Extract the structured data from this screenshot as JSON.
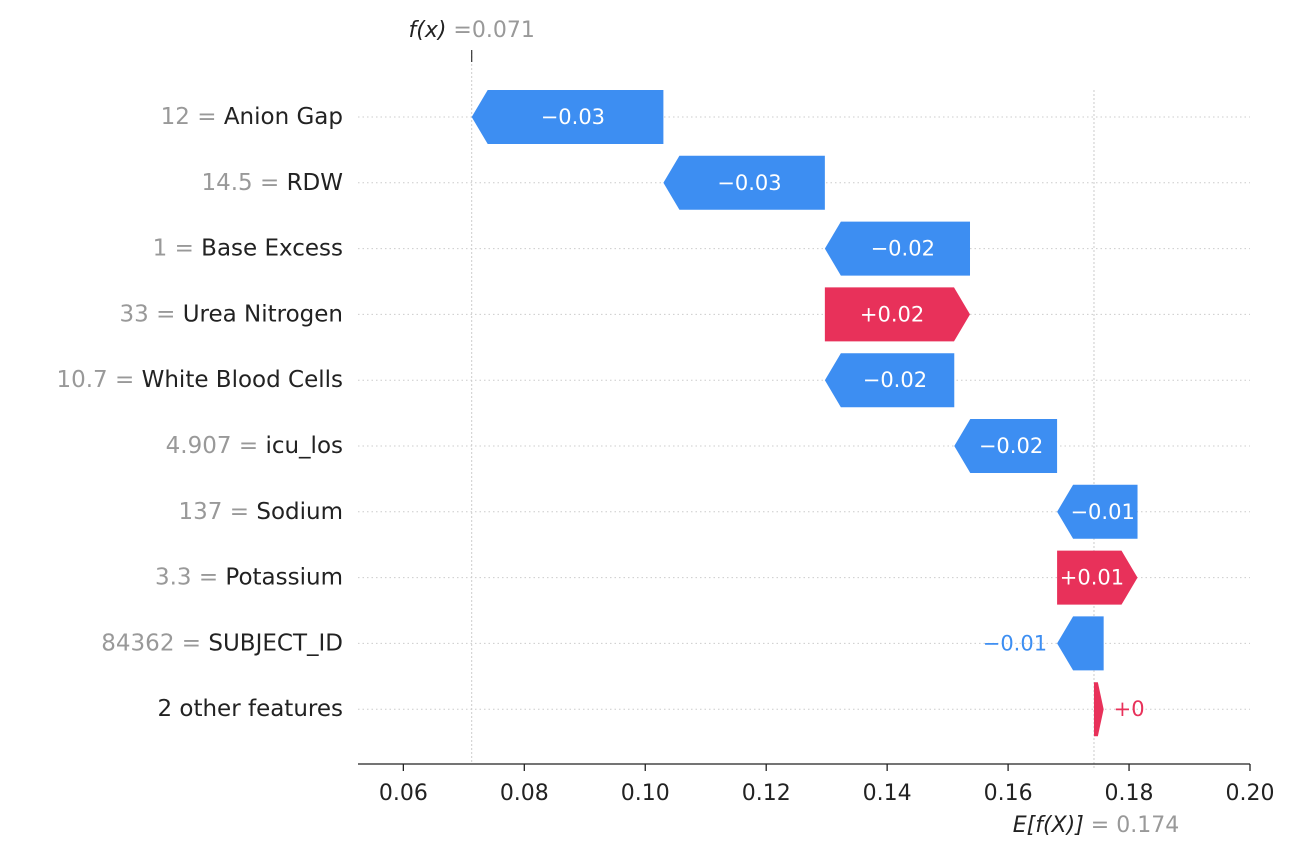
{
  "chart_data": {
    "type": "waterfall",
    "title": "",
    "xlabel": "",
    "ylabel": "",
    "base_value": 0.1742,
    "output_value": 0.0713,
    "output_annotation": {
      "label": "f(x)",
      "eq": "=",
      "value": "0.071"
    },
    "base_annotation": {
      "label": "E[f(X)]",
      "eq": "=",
      "value": "0.174"
    },
    "xlim": [
      0.0525,
      0.2
    ],
    "xticks": [
      {
        "value": 0.06,
        "label": "0.06"
      },
      {
        "value": 0.08,
        "label": "0.08"
      },
      {
        "value": 0.1,
        "label": "0.10"
      },
      {
        "value": 0.12,
        "label": "0.12"
      },
      {
        "value": 0.14,
        "label": "0.14"
      },
      {
        "value": 0.16,
        "label": "0.16"
      },
      {
        "value": 0.18,
        "label": "0.18"
      },
      {
        "value": 0.2,
        "label": "0.20"
      }
    ],
    "rows": [
      {
        "feature_value": "12",
        "eq": "=",
        "feature": "Anion Gap",
        "contribution": -0.0317,
        "start": 0.103,
        "label": "−0.03"
      },
      {
        "feature_value": "14.5",
        "eq": "=",
        "feature": "RDW",
        "contribution": -0.0267,
        "start": 0.1297,
        "label": "−0.03"
      },
      {
        "feature_value": "1",
        "eq": "=",
        "feature": "Base Excess",
        "contribution": -0.024,
        "start": 0.1537,
        "label": "−0.02"
      },
      {
        "feature_value": "33",
        "eq": "=",
        "feature": "Urea Nitrogen",
        "contribution": 0.024,
        "start": 0.1297,
        "label": "+0.02"
      },
      {
        "feature_value": "10.7",
        "eq": "=",
        "feature": "White Blood Cells",
        "contribution": -0.0214,
        "start": 0.1511,
        "label": "−0.02"
      },
      {
        "feature_value": "4.907",
        "eq": "=",
        "feature": "icu_los",
        "contribution": -0.017,
        "start": 0.1681,
        "label": "−0.02"
      },
      {
        "feature_value": "137",
        "eq": "=",
        "feature": "Sodium",
        "contribution": -0.0133,
        "start": 0.1814,
        "label": "−0.01"
      },
      {
        "feature_value": "3.3",
        "eq": "=",
        "feature": "Potassium",
        "contribution": 0.0133,
        "start": 0.1681,
        "label": "+0.01"
      },
      {
        "feature_value": "84362",
        "eq": "=",
        "feature": "SUBJECT_ID",
        "contribution": -0.0077,
        "start": 0.1758,
        "label": "−0.01"
      },
      {
        "feature_value": "",
        "eq": "",
        "feature": "2 other features",
        "contribution": 0.0016,
        "start": 0.1742,
        "label": "+0"
      }
    ],
    "colors": {
      "negative": "#3d8ef2",
      "positive": "#e8315a",
      "axis": "#222222",
      "grid": "#cccccc",
      "muted": "#999999"
    },
    "grid": true
  }
}
